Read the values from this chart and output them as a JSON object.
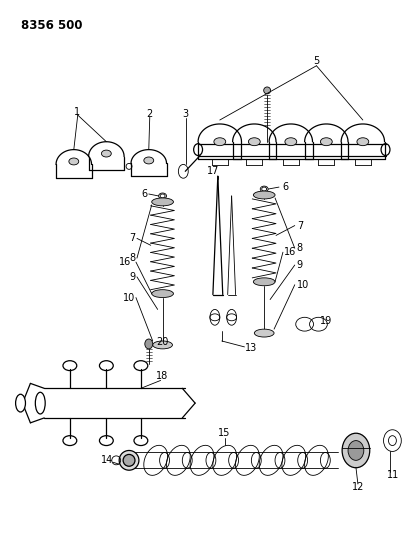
{
  "title": "8356 500",
  "bg_color": "#ffffff",
  "line_color": "#000000",
  "title_fontsize": 8.5,
  "label_fontsize": 7,
  "fig_w": 4.1,
  "fig_h": 5.33,
  "dpi": 100
}
